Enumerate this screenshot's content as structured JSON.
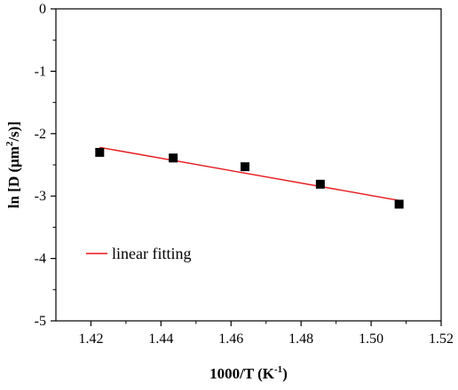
{
  "chart_data": {
    "type": "scatter",
    "title": "",
    "xlabel": {
      "main": "1000/T (K",
      "sup": "-1",
      "close": ")"
    },
    "ylabel": {
      "main": "ln [D (μm",
      "sup": "2",
      "close": "/s)]"
    },
    "xlim": [
      1.41,
      1.52
    ],
    "ylim": [
      -5,
      0
    ],
    "xticks": [
      1.42,
      1.44,
      1.46,
      1.48,
      1.5,
      1.52
    ],
    "xtick_labels": [
      "1.42",
      "1.44",
      "1.46",
      "1.48",
      "1.50",
      "1.52"
    ],
    "yticks": [
      0,
      -1,
      -2,
      -3,
      -4,
      -5
    ],
    "ytick_labels": [
      "0",
      "-1",
      "-2",
      "-3",
      "-4",
      "-5"
    ],
    "grid": false,
    "legend_position": "bottom-left",
    "series": [
      {
        "kind": "points",
        "marker": "square",
        "color": "#000000",
        "x": [
          1.4225,
          1.4435,
          1.464,
          1.4855,
          1.508
        ],
        "y": [
          -2.3,
          -2.39,
          -2.53,
          -2.81,
          -3.13
        ]
      },
      {
        "name": "linear fitting",
        "kind": "line",
        "color": "#e8161b",
        "x": [
          1.4225,
          1.508
        ],
        "y": [
          -2.22,
          -3.07
        ]
      }
    ]
  }
}
